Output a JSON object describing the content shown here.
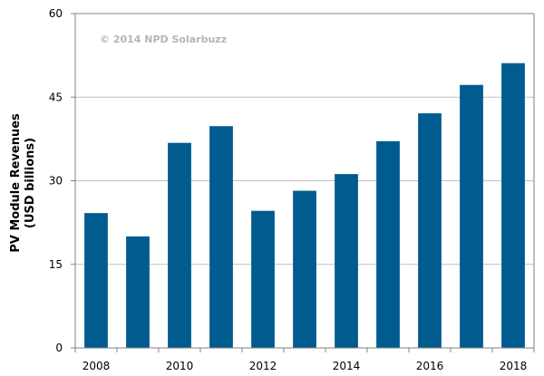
{
  "chart_data": {
    "type": "bar",
    "title": "",
    "xlabel": "",
    "ylabel_lines": [
      "PV Module Revenues",
      "(USD billions)"
    ],
    "watermark": "© 2014 NPD Solarbuzz",
    "categories": [
      "2008",
      "2009",
      "2010",
      "2011",
      "2012",
      "2013",
      "2014",
      "2015",
      "2016",
      "2017",
      "2018"
    ],
    "x_tick_labels": [
      "2008",
      "2010",
      "2012",
      "2014",
      "2016",
      "2018"
    ],
    "values": [
      24.2,
      20.0,
      36.8,
      39.8,
      24.6,
      28.2,
      31.2,
      37.1,
      42.1,
      47.2,
      51.1
    ],
    "ylim": [
      0,
      60
    ],
    "y_ticks": [
      0,
      15,
      30,
      45,
      60
    ],
    "grid": "horizontal",
    "legend": "none",
    "bar_color": "#005b8f",
    "grid_color": "#c0c0c0",
    "axis_color": "#808080"
  }
}
